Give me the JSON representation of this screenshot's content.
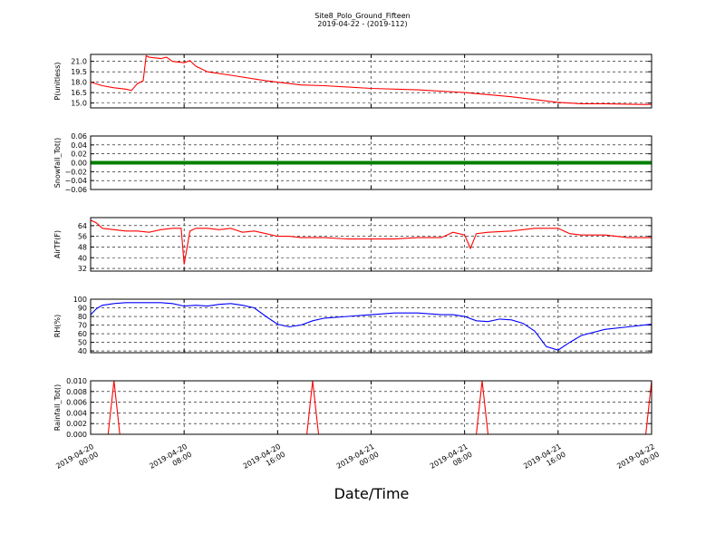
{
  "figure": {
    "title_line1": "Site8_Polo_Ground_Fifteen",
    "title_line2": "2019-04-22 - (2019-112)",
    "xlabel": "Date/Time"
  },
  "x_axis": {
    "range": [
      "2019-04-20 00:00",
      "2019-04-22 00:00"
    ],
    "ticks": [
      {
        "value": "2019-04-20 00:00",
        "line1": "2019-04-20",
        "line2": "00:00"
      },
      {
        "value": "2019-04-20 08:00",
        "line1": "2019-04-20",
        "line2": "08:00"
      },
      {
        "value": "2019-04-20 16:00",
        "line1": "2019-04-20",
        "line2": "16:00"
      },
      {
        "value": "2019-04-21 00:00",
        "line1": "2019-04-21",
        "line2": "00:00"
      },
      {
        "value": "2019-04-21 08:00",
        "line1": "2019-04-21",
        "line2": "08:00"
      },
      {
        "value": "2019-04-21 16:00",
        "line1": "2019-04-21",
        "line2": "16:00"
      },
      {
        "value": "2019-04-22 00:00",
        "line1": "2019-04-22",
        "line2": "00:00"
      }
    ]
  },
  "chart_data": [
    {
      "type": "line",
      "ylabel": "P(unitless)",
      "ylim": [
        14.3,
        22.0
      ],
      "yticks": [
        "15.0",
        "16.5",
        "18.0",
        "19.5",
        "21.0"
      ],
      "grid": true,
      "series": [
        {
          "color": "#ff0000",
          "x": [
            "2019-04-20 00:00",
            "2019-04-20 01:00",
            "2019-04-20 02:00",
            "2019-04-20 03:00",
            "2019-04-20 03:30",
            "2019-04-20 04:00",
            "2019-04-20 04:30",
            "2019-04-20 04:45",
            "2019-04-20 05:00",
            "2019-04-20 06:00",
            "2019-04-20 06:30",
            "2019-04-20 07:00",
            "2019-04-20 07:30",
            "2019-04-20 08:00",
            "2019-04-20 08:30",
            "2019-04-20 09:00",
            "2019-04-20 10:00",
            "2019-04-20 12:00",
            "2019-04-20 15:00",
            "2019-04-20 18:00",
            "2019-04-20 20:00",
            "2019-04-21 00:00",
            "2019-04-21 04:00",
            "2019-04-21 08:00",
            "2019-04-21 12:00",
            "2019-04-21 14:00",
            "2019-04-21 16:00",
            "2019-04-21 18:00",
            "2019-04-21 20:00",
            "2019-04-21 23:00",
            "2019-04-22 00:00"
          ],
          "y": [
            18.0,
            17.5,
            17.2,
            17.0,
            16.8,
            17.8,
            18.2,
            21.8,
            21.6,
            21.4,
            21.6,
            21.0,
            20.9,
            20.8,
            21.1,
            20.3,
            19.5,
            19.0,
            18.2,
            17.6,
            17.5,
            17.1,
            16.9,
            16.5,
            15.9,
            15.5,
            15.1,
            14.9,
            14.9,
            14.8,
            14.8
          ]
        }
      ]
    },
    {
      "type": "line",
      "ylabel": "Snowfall_Tot()",
      "ylim": [
        -0.06,
        0.06
      ],
      "yticks": [
        "−0.06",
        "−0.04",
        "−0.02",
        "0.00",
        "0.02",
        "0.04",
        "0.06"
      ],
      "grid": true,
      "series": [
        {
          "color": "#008000",
          "x": [
            "2019-04-20 00:00",
            "2019-04-22 00:00"
          ],
          "y": [
            0.0,
            0.0
          ]
        }
      ]
    },
    {
      "type": "line",
      "ylabel": "AirTF(F)",
      "ylim": [
        30,
        70
      ],
      "yticks": [
        "32",
        "40",
        "48",
        "56",
        "64"
      ],
      "grid": true,
      "series": [
        {
          "color": "#ff0000",
          "x": [
            "2019-04-20 00:00",
            "2019-04-20 00:30",
            "2019-04-20 01:00",
            "2019-04-20 02:00",
            "2019-04-20 03:00",
            "2019-04-20 04:00",
            "2019-04-20 05:00",
            "2019-04-20 06:00",
            "2019-04-20 07:00",
            "2019-04-20 07:45",
            "2019-04-20 08:00",
            "2019-04-20 08:30",
            "2019-04-20 09:00",
            "2019-04-20 10:00",
            "2019-04-20 11:00",
            "2019-04-20 12:00",
            "2019-04-20 13:00",
            "2019-04-20 14:00",
            "2019-04-20 15:00",
            "2019-04-20 16:00",
            "2019-04-20 17:00",
            "2019-04-20 18:00",
            "2019-04-20 20:00",
            "2019-04-20 22:00",
            "2019-04-21 00:00",
            "2019-04-21 02:00",
            "2019-04-21 04:00",
            "2019-04-21 06:00",
            "2019-04-21 07:00",
            "2019-04-21 08:00",
            "2019-04-21 08:30",
            "2019-04-21 09:00",
            "2019-04-21 10:00",
            "2019-04-21 12:00",
            "2019-04-21 14:00",
            "2019-04-21 16:00",
            "2019-04-21 17:00",
            "2019-04-21 18:00",
            "2019-04-21 20:00",
            "2019-04-21 22:00",
            "2019-04-22 00:00"
          ],
          "y": [
            68,
            66,
            62,
            61,
            60,
            60,
            59,
            61,
            62,
            62,
            35,
            60,
            62,
            62,
            61,
            62,
            59,
            60,
            58,
            56,
            56,
            55,
            55,
            54,
            54,
            54,
            55,
            55,
            59,
            57,
            47,
            58,
            59,
            60,
            62,
            62,
            58,
            57,
            57,
            55,
            55
          ]
        }
      ]
    },
    {
      "type": "line",
      "ylabel": "RH(%)",
      "ylim": [
        38,
        100
      ],
      "yticks": [
        "40",
        "50",
        "60",
        "70",
        "80",
        "90",
        "100"
      ],
      "grid": true,
      "series": [
        {
          "color": "#0000ff",
          "x": [
            "2019-04-20 00:00",
            "2019-04-20 00:30",
            "2019-04-20 01:00",
            "2019-04-20 02:00",
            "2019-04-20 03:00",
            "2019-04-20 04:00",
            "2019-04-20 06:00",
            "2019-04-20 07:00",
            "2019-04-20 08:00",
            "2019-04-20 09:00",
            "2019-04-20 10:00",
            "2019-04-20 11:00",
            "2019-04-20 12:00",
            "2019-04-20 13:00",
            "2019-04-20 14:00",
            "2019-04-20 15:00",
            "2019-04-20 16:00",
            "2019-04-20 17:00",
            "2019-04-20 18:00",
            "2019-04-20 19:00",
            "2019-04-20 20:00",
            "2019-04-20 22:00",
            "2019-04-21 00:00",
            "2019-04-21 02:00",
            "2019-04-21 04:00",
            "2019-04-21 06:00",
            "2019-04-21 07:00",
            "2019-04-21 08:00",
            "2019-04-21 09:00",
            "2019-04-21 10:00",
            "2019-04-21 11:00",
            "2019-04-21 12:00",
            "2019-04-21 13:00",
            "2019-04-21 14:00",
            "2019-04-21 15:00",
            "2019-04-21 16:00",
            "2019-04-21 17:00",
            "2019-04-21 18:00",
            "2019-04-21 20:00",
            "2019-04-21 22:00",
            "2019-04-22 00:00"
          ],
          "y": [
            82,
            89,
            93,
            95,
            96,
            96,
            96,
            95,
            92,
            93,
            92,
            94,
            95,
            93,
            90,
            80,
            71,
            68,
            70,
            75,
            78,
            80,
            82,
            84,
            84,
            82,
            82,
            80,
            75,
            74,
            77,
            76,
            72,
            63,
            45,
            41,
            50,
            58,
            65,
            68,
            71
          ]
        }
      ]
    },
    {
      "type": "line",
      "ylabel": "Rainfall_Tot()",
      "ylim": [
        0,
        0.01
      ],
      "yticks": [
        "0.000",
        "0.002",
        "0.004",
        "0.006",
        "0.008",
        "0.010"
      ],
      "grid": true,
      "series": [
        {
          "color": "#ff0000",
          "x": [
            "2019-04-20 00:00",
            "2019-04-20 01:30",
            "2019-04-20 02:00",
            "2019-04-20 02:30",
            "2019-04-20 18:30",
            "2019-04-20 19:00",
            "2019-04-20 19:30",
            "2019-04-21 09:00",
            "2019-04-21 09:30",
            "2019-04-21 10:00",
            "2019-04-21 23:30",
            "2019-04-22 00:00"
          ],
          "y": [
            0,
            0,
            0.01,
            0,
            0,
            0.01,
            0,
            0,
            0.01,
            0,
            0,
            0.01
          ]
        }
      ]
    }
  ]
}
